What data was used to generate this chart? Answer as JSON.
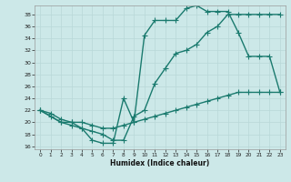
{
  "title": "",
  "xlabel": "Humidex (Indice chaleur)",
  "bg_color": "#cce8e8",
  "line_color": "#1a7a6e",
  "grid_color": "#b8d8d8",
  "xlim": [
    -0.5,
    23.5
  ],
  "ylim": [
    15.5,
    39.5
  ],
  "yticks": [
    16,
    18,
    20,
    22,
    24,
    26,
    28,
    30,
    32,
    34,
    36,
    38
  ],
  "xticks": [
    0,
    1,
    2,
    3,
    4,
    5,
    6,
    7,
    8,
    9,
    10,
    11,
    12,
    13,
    14,
    15,
    16,
    17,
    18,
    19,
    20,
    21,
    22,
    23
  ],
  "line1_x": [
    0,
    1,
    2,
    3,
    4,
    5,
    6,
    7,
    8,
    9,
    10,
    11,
    12,
    13,
    14,
    15,
    16,
    17,
    18,
    19,
    20,
    21,
    22,
    23
  ],
  "line1_y": [
    22,
    21,
    20,
    20,
    19,
    17,
    16.5,
    16.5,
    24,
    20,
    34.5,
    37,
    37,
    37,
    39,
    39.5,
    38.5,
    38.5,
    38.5,
    35,
    31,
    31,
    31,
    25
  ],
  "line2_x": [
    0,
    2,
    3,
    4,
    5,
    6,
    7,
    8,
    9,
    10,
    11,
    12,
    13,
    14,
    15,
    16,
    17,
    18,
    19,
    20,
    21,
    22,
    23
  ],
  "line2_y": [
    22,
    20,
    19.5,
    19,
    18.5,
    18,
    17,
    17,
    21,
    22,
    26.5,
    29,
    31.5,
    32,
    33,
    35,
    36,
    38,
    38,
    38,
    38,
    38,
    38
  ],
  "line3_x": [
    0,
    1,
    2,
    3,
    4,
    5,
    6,
    7,
    8,
    9,
    10,
    11,
    12,
    13,
    14,
    15,
    16,
    17,
    18,
    19,
    20,
    21,
    22,
    23
  ],
  "line3_y": [
    22,
    21.5,
    20.5,
    20,
    20,
    19.5,
    19,
    19,
    19.5,
    20,
    20.5,
    21,
    21.5,
    22,
    22.5,
    23,
    23.5,
    24,
    24.5,
    25,
    25,
    25,
    25,
    25
  ]
}
